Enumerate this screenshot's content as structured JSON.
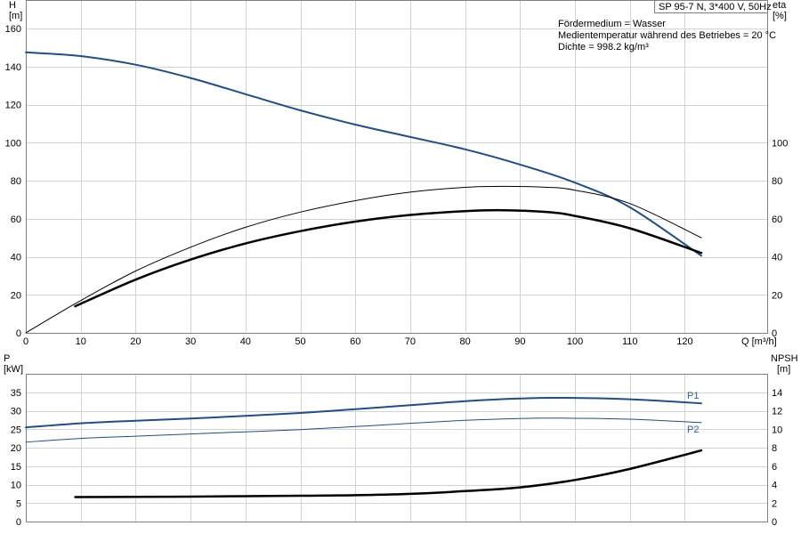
{
  "title_box": "SP 95-7 N, 3*400 V, 50Hz",
  "info_lines": [
    "Fördermedium = Wasser",
    "Medientemperatur während des Betriebes = 20 °C",
    "Dichte = 998.2 kg/m³"
  ],
  "colors": {
    "blue": "#1f4e8c",
    "blue_light": "#3a6fb0",
    "black": "#000000",
    "grid": "#d3d3d3"
  },
  "chart_data": [
    {
      "type": "line",
      "name": "upper",
      "x_axis": {
        "label": "Q [m³/h]",
        "ticks": [
          0,
          10,
          20,
          30,
          40,
          50,
          60,
          70,
          80,
          90,
          100,
          110,
          120
        ],
        "range": [
          0,
          135
        ]
      },
      "y_left": {
        "label_top": "H",
        "label_unit": "[m]",
        "ticks": [
          0,
          20,
          40,
          60,
          80,
          100,
          120,
          140,
          160
        ],
        "range": [
          0,
          175
        ]
      },
      "y_right": {
        "label_top": "eta",
        "label_unit": "[%]",
        "ticks": [
          0,
          20,
          40,
          60,
          80,
          100
        ],
        "range": [
          0,
          175
        ]
      },
      "grid": true,
      "series": [
        {
          "axis": "left",
          "color": "#1f4e8c",
          "width": 2,
          "x": [
            0,
            10,
            20,
            30,
            40,
            50,
            60,
            70,
            80,
            90,
            100,
            110,
            123
          ],
          "y": [
            147.5,
            145.5,
            141,
            134,
            125.5,
            117,
            109.5,
            103,
            96.5,
            88.5,
            79,
            66,
            40.5
          ]
        },
        {
          "axis": "right",
          "color": "#000000",
          "width": 1,
          "x": [
            0,
            10,
            20,
            30,
            40,
            50,
            60,
            70,
            80,
            87,
            95,
            100,
            110,
            123
          ],
          "y": [
            0,
            17,
            32.5,
            45,
            55.5,
            63.5,
            69.5,
            74,
            76.5,
            77,
            76.5,
            75,
            68,
            50
          ]
        },
        {
          "axis": "right",
          "color": "#000000",
          "width": 2.5,
          "x": [
            9,
            20,
            30,
            40,
            50,
            60,
            70,
            80,
            87,
            95,
            100,
            110,
            123
          ],
          "y": [
            14,
            28,
            38.5,
            47,
            53.5,
            58.5,
            62,
            64,
            64.5,
            63.5,
            61.5,
            55,
            42
          ]
        }
      ]
    },
    {
      "type": "line",
      "name": "lower",
      "x_axis": {
        "ticks": [
          0,
          10,
          20,
          30,
          40,
          50,
          60,
          70,
          80,
          90,
          100,
          110,
          120
        ],
        "range": [
          0,
          135
        ]
      },
      "y_left": {
        "label_top": "P",
        "label_unit": "[kW]",
        "ticks": [
          0,
          5,
          10,
          15,
          20,
          25,
          30,
          35
        ],
        "range": [
          0,
          40
        ]
      },
      "y_right": {
        "label_top": "NPSH",
        "label_unit": "[m]",
        "ticks": [
          0,
          2,
          4,
          6,
          8,
          10,
          12,
          14
        ],
        "range": [
          0,
          16
        ]
      },
      "grid": true,
      "series": [
        {
          "name": "P1",
          "axis": "left",
          "color": "#1f4e8c",
          "width": 2,
          "x": [
            0,
            10,
            20,
            30,
            40,
            50,
            60,
            70,
            80,
            90,
            97,
            110,
            123
          ],
          "y": [
            25.5,
            26.6,
            27.3,
            27.9,
            28.6,
            29.4,
            30.4,
            31.5,
            32.6,
            33.3,
            33.5,
            33.1,
            32
          ]
        },
        {
          "name": "P2",
          "axis": "left",
          "color": "#1f4e8c",
          "width": 1,
          "x": [
            0,
            10,
            20,
            30,
            40,
            50,
            60,
            70,
            80,
            90,
            97,
            110,
            123
          ],
          "y": [
            21.5,
            22.5,
            23.1,
            23.7,
            24.3,
            24.9,
            25.7,
            26.6,
            27.4,
            27.9,
            28,
            27.7,
            26.8
          ]
        },
        {
          "axis": "right",
          "color": "#000000",
          "width": 2.5,
          "x": [
            9,
            20,
            30,
            40,
            50,
            60,
            70,
            80,
            90,
            100,
            110,
            123
          ],
          "y": [
            2.65,
            2.67,
            2.7,
            2.75,
            2.8,
            2.85,
            3,
            3.3,
            3.7,
            4.5,
            5.7,
            7.7
          ]
        }
      ]
    }
  ],
  "series_labels": {
    "p1": "P1",
    "p2": "P2"
  }
}
